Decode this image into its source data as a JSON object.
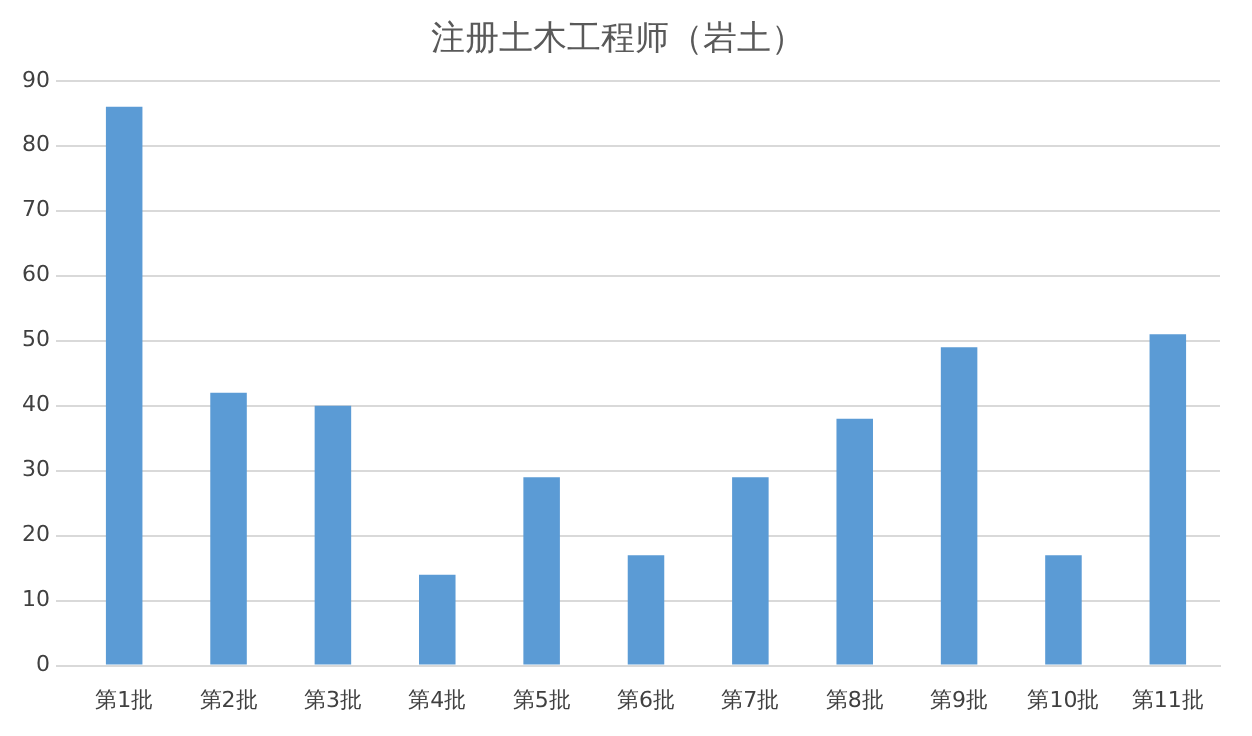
{
  "chart_data": {
    "type": "bar",
    "title": "注册土木工程师（岩土）",
    "categories": [
      "第1批",
      "第2批",
      "第3批",
      "第4批",
      "第5批",
      "第6批",
      "第7批",
      "第8批",
      "第9批",
      "第10批",
      "第11批"
    ],
    "values": [
      86,
      42,
      40,
      14,
      29,
      17,
      29,
      38,
      49,
      17,
      51
    ],
    "color": "#5b9bd5",
    "ylim": [
      0,
      90
    ],
    "yticks": [
      0,
      10,
      20,
      30,
      40,
      50,
      60,
      70,
      80,
      90
    ],
    "grid": "y"
  }
}
